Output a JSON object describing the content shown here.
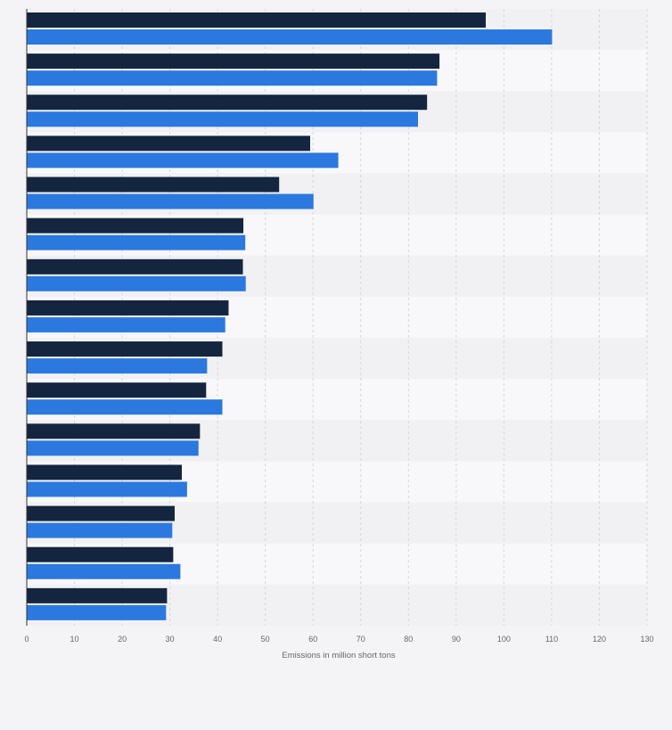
{
  "chart_data": {
    "type": "bar",
    "orientation": "horizontal",
    "title": "",
    "xlabel": "Emissions in million short tons",
    "ylabel": "",
    "xlim": [
      0,
      130
    ],
    "x_ticks": [
      0,
      10,
      20,
      30,
      40,
      50,
      60,
      70,
      80,
      90,
      100,
      110,
      120,
      130
    ],
    "grid": "vertical dashed",
    "categories": [
      "",
      "",
      "",
      "",
      "",
      "",
      "",
      "",
      "",
      "",
      "",
      "",
      "",
      "",
      ""
    ],
    "series": [
      {
        "color": "#14253f",
        "values": [
          96.2,
          86.5,
          83.9,
          59.4,
          52.9,
          45.4,
          45.3,
          42.3,
          41.0,
          37.6,
          36.3,
          32.5,
          31.0,
          30.7,
          29.4
        ]
      },
      {
        "color": "#2b79df",
        "values": [
          110.1,
          86.0,
          82.0,
          65.3,
          60.1,
          45.8,
          45.9,
          41.6,
          37.8,
          41.0,
          36.0,
          33.6,
          30.5,
          32.2,
          29.2
        ]
      }
    ],
    "legend": "none"
  },
  "colors": {
    "background": "#f4f4f6",
    "band_dark": "#f1f1f3",
    "band_light": "#f8f8fa",
    "grid": "#d6d6da",
    "axis": "#333333"
  }
}
